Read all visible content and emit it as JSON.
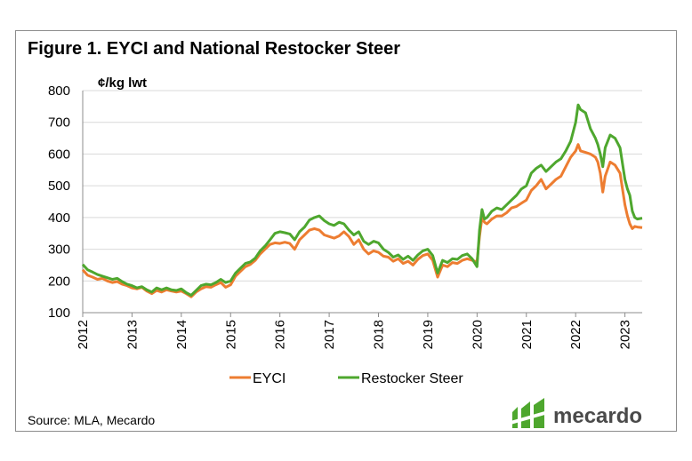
{
  "title": "Figure 1. EYCI and National Restocker Steer",
  "unit_label": "¢/kg lwt",
  "source": "Source:  MLA, Mecardo",
  "logo_text": "mecardo",
  "colors": {
    "eyci": "#ed7d31",
    "restocker": "#4ea72e",
    "grid": "#d9d9d9",
    "logo": "#4ea72e"
  },
  "chart_data": {
    "type": "line",
    "title": "Figure 1. EYCI and National Restocker Steer",
    "ylabel": "¢/kg lwt",
    "xlabel": "",
    "x_ticks": [
      "2012",
      "2013",
      "2014",
      "2015",
      "2016",
      "2017",
      "2018",
      "2019",
      "2020",
      "2021",
      "2022",
      "2023"
    ],
    "xlim": [
      2012,
      2023.35
    ],
    "y_ticks": [
      100,
      200,
      300,
      400,
      500,
      600,
      700,
      800
    ],
    "ylim": [
      100,
      800
    ],
    "grid": "horizontal",
    "legend": "bottom",
    "series": [
      {
        "name": "EYCI",
        "color": "#ed7d31",
        "points": [
          [
            2012.0,
            235
          ],
          [
            2012.1,
            218
          ],
          [
            2012.2,
            212
          ],
          [
            2012.3,
            205
          ],
          [
            2012.4,
            208
          ],
          [
            2012.5,
            200
          ],
          [
            2012.6,
            195
          ],
          [
            2012.7,
            198
          ],
          [
            2012.8,
            190
          ],
          [
            2012.9,
            185
          ],
          [
            2013.0,
            178
          ],
          [
            2013.1,
            175
          ],
          [
            2013.2,
            180
          ],
          [
            2013.3,
            168
          ],
          [
            2013.4,
            160
          ],
          [
            2013.5,
            170
          ],
          [
            2013.6,
            165
          ],
          [
            2013.7,
            172
          ],
          [
            2013.8,
            168
          ],
          [
            2013.9,
            165
          ],
          [
            2014.0,
            168
          ],
          [
            2014.1,
            160
          ],
          [
            2014.2,
            150
          ],
          [
            2014.3,
            165
          ],
          [
            2014.4,
            175
          ],
          [
            2014.5,
            182
          ],
          [
            2014.6,
            180
          ],
          [
            2014.7,
            188
          ],
          [
            2014.8,
            195
          ],
          [
            2014.9,
            180
          ],
          [
            2015.0,
            188
          ],
          [
            2015.1,
            215
          ],
          [
            2015.2,
            230
          ],
          [
            2015.3,
            245
          ],
          [
            2015.4,
            252
          ],
          [
            2015.5,
            265
          ],
          [
            2015.6,
            285
          ],
          [
            2015.7,
            300
          ],
          [
            2015.8,
            315
          ],
          [
            2015.9,
            320
          ],
          [
            2016.0,
            318
          ],
          [
            2016.1,
            322
          ],
          [
            2016.2,
            318
          ],
          [
            2016.3,
            300
          ],
          [
            2016.4,
            330
          ],
          [
            2016.5,
            345
          ],
          [
            2016.6,
            360
          ],
          [
            2016.7,
            365
          ],
          [
            2016.8,
            360
          ],
          [
            2016.9,
            345
          ],
          [
            2017.0,
            340
          ],
          [
            2017.1,
            335
          ],
          [
            2017.2,
            342
          ],
          [
            2017.3,
            355
          ],
          [
            2017.4,
            340
          ],
          [
            2017.5,
            315
          ],
          [
            2017.6,
            330
          ],
          [
            2017.7,
            300
          ],
          [
            2017.8,
            285
          ],
          [
            2017.9,
            295
          ],
          [
            2018.0,
            290
          ],
          [
            2018.1,
            278
          ],
          [
            2018.2,
            275
          ],
          [
            2018.3,
            262
          ],
          [
            2018.4,
            270
          ],
          [
            2018.5,
            255
          ],
          [
            2018.6,
            262
          ],
          [
            2018.7,
            250
          ],
          [
            2018.8,
            268
          ],
          [
            2018.9,
            280
          ],
          [
            2019.0,
            285
          ],
          [
            2019.1,
            265
          ],
          [
            2019.2,
            212
          ],
          [
            2019.3,
            250
          ],
          [
            2019.4,
            245
          ],
          [
            2019.5,
            258
          ],
          [
            2019.6,
            255
          ],
          [
            2019.7,
            265
          ],
          [
            2019.8,
            270
          ],
          [
            2019.9,
            265
          ],
          [
            2020.0,
            260
          ],
          [
            2020.05,
            340
          ],
          [
            2020.1,
            400
          ],
          [
            2020.15,
            385
          ],
          [
            2020.2,
            380
          ],
          [
            2020.3,
            395
          ],
          [
            2020.4,
            405
          ],
          [
            2020.5,
            405
          ],
          [
            2020.6,
            415
          ],
          [
            2020.7,
            430
          ],
          [
            2020.8,
            435
          ],
          [
            2020.9,
            445
          ],
          [
            2021.0,
            455
          ],
          [
            2021.1,
            485
          ],
          [
            2021.2,
            500
          ],
          [
            2021.3,
            520
          ],
          [
            2021.4,
            490
          ],
          [
            2021.5,
            505
          ],
          [
            2021.6,
            520
          ],
          [
            2021.7,
            530
          ],
          [
            2021.8,
            560
          ],
          [
            2021.9,
            590
          ],
          [
            2022.0,
            610
          ],
          [
            2022.05,
            630
          ],
          [
            2022.1,
            610
          ],
          [
            2022.2,
            605
          ],
          [
            2022.3,
            600
          ],
          [
            2022.4,
            590
          ],
          [
            2022.45,
            575
          ],
          [
            2022.5,
            540
          ],
          [
            2022.55,
            480
          ],
          [
            2022.6,
            530
          ],
          [
            2022.7,
            575
          ],
          [
            2022.8,
            565
          ],
          [
            2022.9,
            540
          ],
          [
            2023.0,
            440
          ],
          [
            2023.05,
            405
          ],
          [
            2023.1,
            380
          ],
          [
            2023.15,
            365
          ],
          [
            2023.2,
            372
          ],
          [
            2023.25,
            370
          ],
          [
            2023.35,
            368
          ]
        ]
      },
      {
        "name": "Restocker Steer",
        "color": "#4ea72e",
        "points": [
          [
            2012.0,
            252
          ],
          [
            2012.1,
            235
          ],
          [
            2012.2,
            228
          ],
          [
            2012.3,
            220
          ],
          [
            2012.4,
            215
          ],
          [
            2012.5,
            210
          ],
          [
            2012.6,
            205
          ],
          [
            2012.7,
            208
          ],
          [
            2012.8,
            198
          ],
          [
            2012.9,
            190
          ],
          [
            2013.0,
            185
          ],
          [
            2013.1,
            178
          ],
          [
            2013.2,
            182
          ],
          [
            2013.3,
            172
          ],
          [
            2013.4,
            165
          ],
          [
            2013.5,
            178
          ],
          [
            2013.6,
            172
          ],
          [
            2013.7,
            178
          ],
          [
            2013.8,
            172
          ],
          [
            2013.9,
            170
          ],
          [
            2014.0,
            175
          ],
          [
            2014.1,
            163
          ],
          [
            2014.2,
            155
          ],
          [
            2014.3,
            170
          ],
          [
            2014.4,
            185
          ],
          [
            2014.5,
            190
          ],
          [
            2014.6,
            188
          ],
          [
            2014.7,
            195
          ],
          [
            2014.8,
            205
          ],
          [
            2014.9,
            195
          ],
          [
            2015.0,
            200
          ],
          [
            2015.1,
            225
          ],
          [
            2015.2,
            240
          ],
          [
            2015.3,
            255
          ],
          [
            2015.4,
            260
          ],
          [
            2015.5,
            272
          ],
          [
            2015.6,
            295
          ],
          [
            2015.7,
            310
          ],
          [
            2015.8,
            330
          ],
          [
            2015.9,
            350
          ],
          [
            2016.0,
            355
          ],
          [
            2016.1,
            352
          ],
          [
            2016.2,
            348
          ],
          [
            2016.3,
            330
          ],
          [
            2016.4,
            355
          ],
          [
            2016.5,
            370
          ],
          [
            2016.6,
            392
          ],
          [
            2016.7,
            400
          ],
          [
            2016.8,
            405
          ],
          [
            2016.9,
            390
          ],
          [
            2017.0,
            380
          ],
          [
            2017.1,
            375
          ],
          [
            2017.2,
            385
          ],
          [
            2017.3,
            380
          ],
          [
            2017.4,
            360
          ],
          [
            2017.5,
            345
          ],
          [
            2017.6,
            355
          ],
          [
            2017.7,
            325
          ],
          [
            2017.8,
            315
          ],
          [
            2017.9,
            325
          ],
          [
            2018.0,
            320
          ],
          [
            2018.1,
            300
          ],
          [
            2018.2,
            290
          ],
          [
            2018.3,
            275
          ],
          [
            2018.4,
            282
          ],
          [
            2018.5,
            268
          ],
          [
            2018.6,
            278
          ],
          [
            2018.7,
            265
          ],
          [
            2018.8,
            282
          ],
          [
            2018.9,
            295
          ],
          [
            2019.0,
            300
          ],
          [
            2019.1,
            280
          ],
          [
            2019.2,
            225
          ],
          [
            2019.3,
            265
          ],
          [
            2019.4,
            258
          ],
          [
            2019.5,
            270
          ],
          [
            2019.6,
            268
          ],
          [
            2019.7,
            280
          ],
          [
            2019.8,
            285
          ],
          [
            2019.9,
            270
          ],
          [
            2020.0,
            245
          ],
          [
            2020.05,
            360
          ],
          [
            2020.1,
            425
          ],
          [
            2020.15,
            395
          ],
          [
            2020.2,
            400
          ],
          [
            2020.3,
            420
          ],
          [
            2020.4,
            430
          ],
          [
            2020.5,
            425
          ],
          [
            2020.6,
            440
          ],
          [
            2020.7,
            455
          ],
          [
            2020.8,
            470
          ],
          [
            2020.9,
            490
          ],
          [
            2021.0,
            500
          ],
          [
            2021.1,
            540
          ],
          [
            2021.2,
            555
          ],
          [
            2021.3,
            565
          ],
          [
            2021.4,
            545
          ],
          [
            2021.5,
            560
          ],
          [
            2021.6,
            575
          ],
          [
            2021.7,
            585
          ],
          [
            2021.8,
            610
          ],
          [
            2021.9,
            640
          ],
          [
            2022.0,
            700
          ],
          [
            2022.05,
            755
          ],
          [
            2022.1,
            740
          ],
          [
            2022.2,
            730
          ],
          [
            2022.3,
            680
          ],
          [
            2022.4,
            650
          ],
          [
            2022.45,
            630
          ],
          [
            2022.5,
            600
          ],
          [
            2022.55,
            560
          ],
          [
            2022.6,
            620
          ],
          [
            2022.7,
            660
          ],
          [
            2022.8,
            650
          ],
          [
            2022.9,
            620
          ],
          [
            2023.0,
            520
          ],
          [
            2023.05,
            490
          ],
          [
            2023.1,
            470
          ],
          [
            2023.15,
            420
          ],
          [
            2023.2,
            400
          ],
          [
            2023.25,
            395
          ],
          [
            2023.35,
            398
          ]
        ]
      }
    ]
  }
}
